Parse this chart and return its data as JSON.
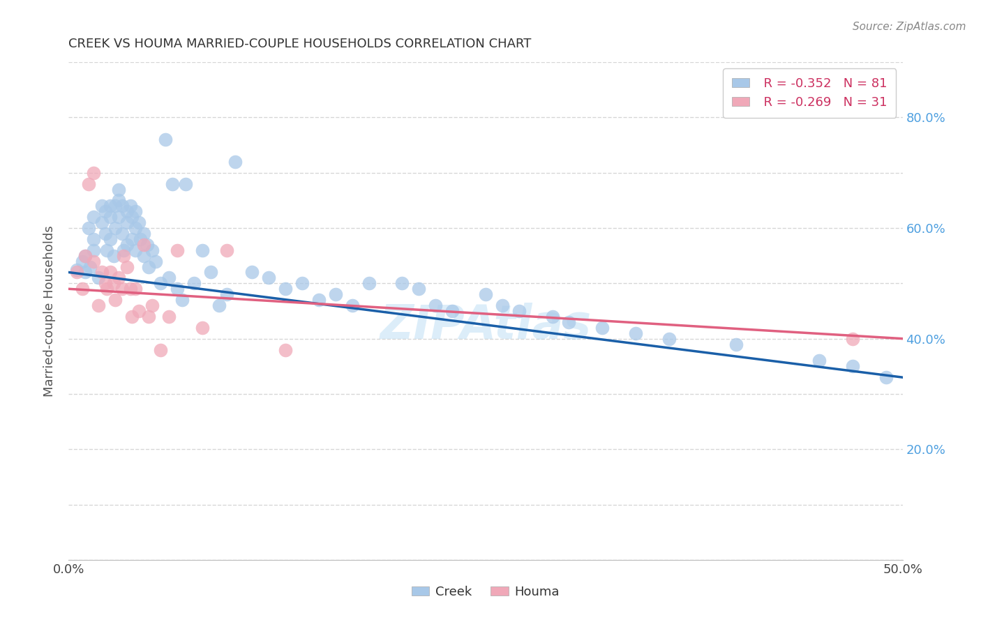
{
  "title": "CREEK VS HOUMA MARRIED-COUPLE HOUSEHOLDS CORRELATION CHART",
  "source": "Source: ZipAtlas.com",
  "ylabel_label": "Married-couple Households",
  "xlim": [
    0.0,
    0.5
  ],
  "ylim": [
    0.0,
    0.9
  ],
  "legend_r_creek": "R = -0.352",
  "legend_n_creek": "N = 81",
  "legend_r_houma": "R = -0.269",
  "legend_n_houma": "N = 31",
  "creek_color": "#a8c8e8",
  "houma_color": "#f0a8b8",
  "creek_line_color": "#1a5fa8",
  "houma_line_color": "#e06080",
  "background_color": "#ffffff",
  "ytick_color": "#4fa0e0",
  "grid_color": "#cccccc",
  "creek_x": [
    0.005,
    0.008,
    0.01,
    0.01,
    0.012,
    0.013,
    0.015,
    0.015,
    0.015,
    0.018,
    0.02,
    0.02,
    0.022,
    0.022,
    0.023,
    0.025,
    0.025,
    0.025,
    0.027,
    0.028,
    0.028,
    0.03,
    0.03,
    0.03,
    0.032,
    0.032,
    0.033,
    0.035,
    0.035,
    0.035,
    0.037,
    0.038,
    0.038,
    0.04,
    0.04,
    0.04,
    0.042,
    0.043,
    0.045,
    0.045,
    0.047,
    0.048,
    0.05,
    0.052,
    0.055,
    0.058,
    0.06,
    0.062,
    0.065,
    0.068,
    0.07,
    0.075,
    0.08,
    0.085,
    0.09,
    0.095,
    0.1,
    0.11,
    0.12,
    0.13,
    0.14,
    0.15,
    0.16,
    0.17,
    0.18,
    0.2,
    0.21,
    0.22,
    0.23,
    0.25,
    0.26,
    0.27,
    0.29,
    0.3,
    0.32,
    0.34,
    0.36,
    0.4,
    0.45,
    0.47,
    0.49
  ],
  "creek_y": [
    0.525,
    0.54,
    0.52,
    0.55,
    0.6,
    0.53,
    0.62,
    0.58,
    0.56,
    0.51,
    0.64,
    0.61,
    0.63,
    0.59,
    0.56,
    0.64,
    0.62,
    0.58,
    0.55,
    0.64,
    0.6,
    0.67,
    0.65,
    0.62,
    0.64,
    0.59,
    0.56,
    0.63,
    0.61,
    0.57,
    0.64,
    0.62,
    0.58,
    0.63,
    0.6,
    0.56,
    0.61,
    0.58,
    0.59,
    0.55,
    0.57,
    0.53,
    0.56,
    0.54,
    0.5,
    0.76,
    0.51,
    0.68,
    0.49,
    0.47,
    0.68,
    0.5,
    0.56,
    0.52,
    0.46,
    0.48,
    0.72,
    0.52,
    0.51,
    0.49,
    0.5,
    0.47,
    0.48,
    0.46,
    0.5,
    0.5,
    0.49,
    0.46,
    0.45,
    0.48,
    0.46,
    0.45,
    0.44,
    0.43,
    0.42,
    0.41,
    0.4,
    0.39,
    0.36,
    0.35,
    0.33
  ],
  "houma_x": [
    0.005,
    0.008,
    0.01,
    0.012,
    0.015,
    0.015,
    0.018,
    0.02,
    0.022,
    0.023,
    0.025,
    0.027,
    0.028,
    0.03,
    0.032,
    0.033,
    0.035,
    0.037,
    0.038,
    0.04,
    0.042,
    0.045,
    0.048,
    0.05,
    0.055,
    0.06,
    0.065,
    0.08,
    0.095,
    0.13,
    0.47
  ],
  "houma_y": [
    0.52,
    0.49,
    0.55,
    0.68,
    0.7,
    0.54,
    0.46,
    0.52,
    0.5,
    0.49,
    0.52,
    0.5,
    0.47,
    0.51,
    0.49,
    0.55,
    0.53,
    0.49,
    0.44,
    0.49,
    0.45,
    0.57,
    0.44,
    0.46,
    0.38,
    0.44,
    0.56,
    0.42,
    0.56,
    0.38,
    0.4
  ]
}
